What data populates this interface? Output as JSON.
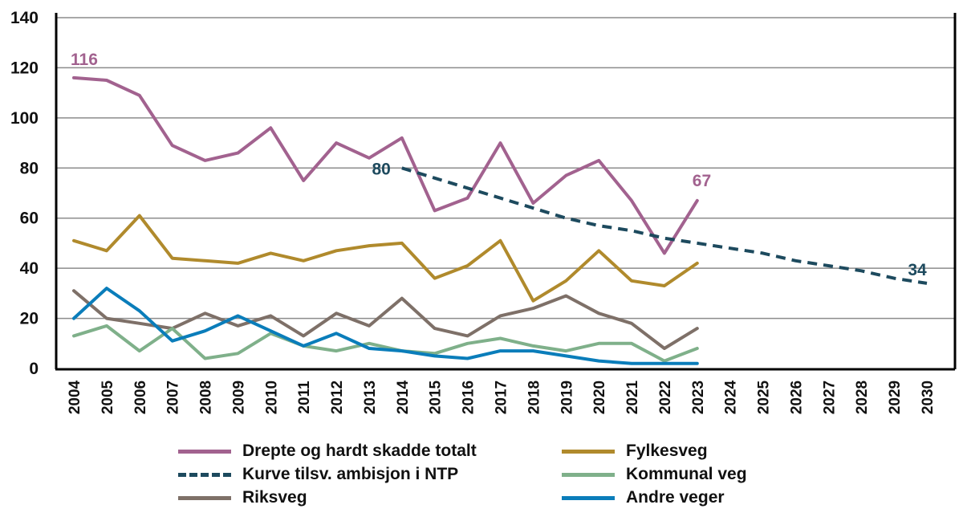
{
  "chart_data": {
    "type": "line",
    "title": "",
    "xlabel": "",
    "ylabel": "",
    "ylim": [
      0,
      140
    ],
    "yticks": [
      0,
      20,
      40,
      60,
      80,
      100,
      120,
      140
    ],
    "xlim": [
      2004,
      2030
    ],
    "x": [
      2004,
      2005,
      2006,
      2007,
      2008,
      2009,
      2010,
      2011,
      2012,
      2013,
      2014,
      2015,
      2016,
      2017,
      2018,
      2019,
      2020,
      2021,
      2022,
      2023,
      2024,
      2025,
      2026,
      2027,
      2028,
      2029,
      2030
    ],
    "grid": true,
    "legend_position": "bottom",
    "series": [
      {
        "name": "Drepte og hardt skadde totalt",
        "color": "#A2628F",
        "dash": false,
        "x": [
          2004,
          2005,
          2006,
          2007,
          2008,
          2009,
          2010,
          2011,
          2012,
          2013,
          2014,
          2015,
          2016,
          2017,
          2018,
          2019,
          2020,
          2021,
          2022,
          2023
        ],
        "values": [
          116,
          115,
          109,
          89,
          83,
          86,
          96,
          75,
          90,
          84,
          92,
          63,
          68,
          90,
          66,
          77,
          83,
          67,
          46,
          67
        ]
      },
      {
        "name": "Kurve tilsv. ambisjon i NTP",
        "color": "#1D4A5E",
        "dash": true,
        "x": [
          2014,
          2015,
          2016,
          2017,
          2018,
          2019,
          2020,
          2021,
          2022,
          2023,
          2024,
          2025,
          2026,
          2027,
          2028,
          2029,
          2030
        ],
        "values": [
          80,
          76,
          72,
          68,
          64,
          60,
          57,
          55,
          52,
          50,
          48,
          46,
          43,
          41,
          39,
          36,
          34
        ]
      },
      {
        "name": "Riksveg",
        "color": "#7E7068",
        "dash": false,
        "x": [
          2004,
          2005,
          2006,
          2007,
          2008,
          2009,
          2010,
          2011,
          2012,
          2013,
          2014,
          2015,
          2016,
          2017,
          2018,
          2019,
          2020,
          2021,
          2022,
          2023
        ],
        "values": [
          31,
          20,
          18,
          16,
          22,
          17,
          21,
          13,
          22,
          17,
          28,
          16,
          13,
          21,
          24,
          29,
          22,
          18,
          8,
          16
        ]
      },
      {
        "name": "Fylkesveg",
        "color": "#B08A2C",
        "dash": false,
        "x": [
          2004,
          2005,
          2006,
          2007,
          2008,
          2009,
          2010,
          2011,
          2012,
          2013,
          2014,
          2015,
          2016,
          2017,
          2018,
          2019,
          2020,
          2021,
          2022,
          2023
        ],
        "values": [
          51,
          47,
          61,
          44,
          43,
          42,
          46,
          43,
          47,
          49,
          50,
          36,
          41,
          51,
          27,
          35,
          47,
          35,
          33,
          42
        ]
      },
      {
        "name": "Kommunal veg",
        "color": "#7FB08A",
        "dash": false,
        "x": [
          2004,
          2005,
          2006,
          2007,
          2008,
          2009,
          2010,
          2011,
          2012,
          2013,
          2014,
          2015,
          2016,
          2017,
          2018,
          2019,
          2020,
          2021,
          2022,
          2023
        ],
        "values": [
          13,
          17,
          7,
          16,
          4,
          6,
          14,
          9,
          7,
          10,
          7,
          6,
          10,
          12,
          9,
          7,
          10,
          10,
          3,
          8
        ]
      },
      {
        "name": "Andre veger",
        "color": "#0A7DBA",
        "dash": false,
        "x": [
          2004,
          2005,
          2006,
          2007,
          2008,
          2009,
          2010,
          2011,
          2012,
          2013,
          2014,
          2015,
          2016,
          2017,
          2018,
          2019,
          2020,
          2021,
          2022,
          2023
        ],
        "values": [
          20,
          32,
          23,
          11,
          15,
          21,
          15,
          9,
          14,
          8,
          7,
          5,
          4,
          7,
          7,
          5,
          3,
          2,
          2,
          2
        ]
      }
    ],
    "annotations": [
      {
        "text": "116",
        "x": 2004,
        "y": 116,
        "color": "#A2628F"
      },
      {
        "text": "80",
        "x": 2014,
        "y": 80,
        "color": "#1D4A5E"
      },
      {
        "text": "67",
        "x": 2023,
        "y": 67,
        "color": "#A2628F"
      },
      {
        "text": "34",
        "x": 2030,
        "y": 34,
        "color": "#1D4A5E"
      }
    ]
  },
  "legend": {
    "items": [
      {
        "label": "Drepte og hardt skadde totalt",
        "color": "#A2628F",
        "dash": false
      },
      {
        "label": "Kurve tilsv. ambisjon i NTP",
        "color": "#1D4A5E",
        "dash": true
      },
      {
        "label": "Riksveg",
        "color": "#7E7068",
        "dash": false
      },
      {
        "label": "Fylkesveg",
        "color": "#B08A2C",
        "dash": false
      },
      {
        "label": "Kommunal veg",
        "color": "#7FB08A",
        "dash": false
      },
      {
        "label": "Andre veger",
        "color": "#0A7DBA",
        "dash": false
      }
    ]
  }
}
